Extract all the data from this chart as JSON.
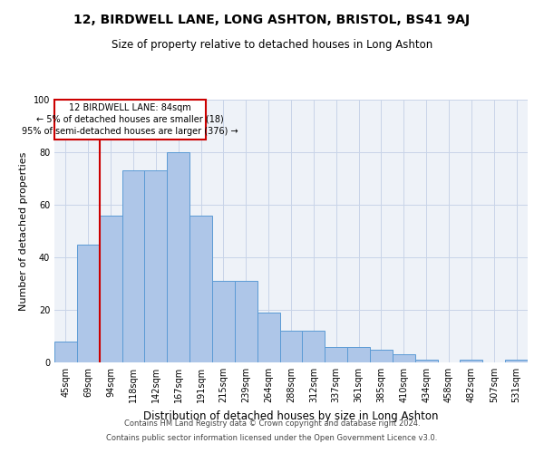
{
  "title": "12, BIRDWELL LANE, LONG ASHTON, BRISTOL, BS41 9AJ",
  "subtitle": "Size of property relative to detached houses in Long Ashton",
  "xlabel": "Distribution of detached houses by size in Long Ashton",
  "ylabel": "Number of detached properties",
  "categories": [
    "45sqm",
    "69sqm",
    "94sqm",
    "118sqm",
    "142sqm",
    "167sqm",
    "191sqm",
    "215sqm",
    "239sqm",
    "264sqm",
    "288sqm",
    "312sqm",
    "337sqm",
    "361sqm",
    "385sqm",
    "410sqm",
    "434sqm",
    "458sqm",
    "482sqm",
    "507sqm",
    "531sqm"
  ],
  "values": [
    8,
    45,
    56,
    73,
    73,
    80,
    56,
    31,
    31,
    19,
    12,
    12,
    6,
    6,
    5,
    3,
    1,
    0,
    1,
    0,
    1
  ],
  "bar_color": "#aec6e8",
  "bar_edge_color": "#5b9bd5",
  "annotation_text_line1": "12 BIRDWELL LANE: 84sqm",
  "annotation_text_line2": "← 5% of detached houses are smaller (18)",
  "annotation_text_line3": "95% of semi-detached houses are larger (376) →",
  "annotation_box_color": "#ffffff",
  "annotation_box_edge_color": "#cc0000",
  "red_line_color": "#cc0000",
  "footer_line1": "Contains HM Land Registry data © Crown copyright and database right 2024.",
  "footer_line2": "Contains public sector information licensed under the Open Government Licence v3.0.",
  "ylim": [
    0,
    100
  ],
  "title_fontsize": 10,
  "subtitle_fontsize": 8.5,
  "ylabel_fontsize": 8,
  "xlabel_fontsize": 8.5,
  "tick_fontsize": 7,
  "annot_fontsize": 7,
  "footer_fontsize": 6,
  "grid_color": "#c8d4e8",
  "bg_color": "#eef2f8"
}
